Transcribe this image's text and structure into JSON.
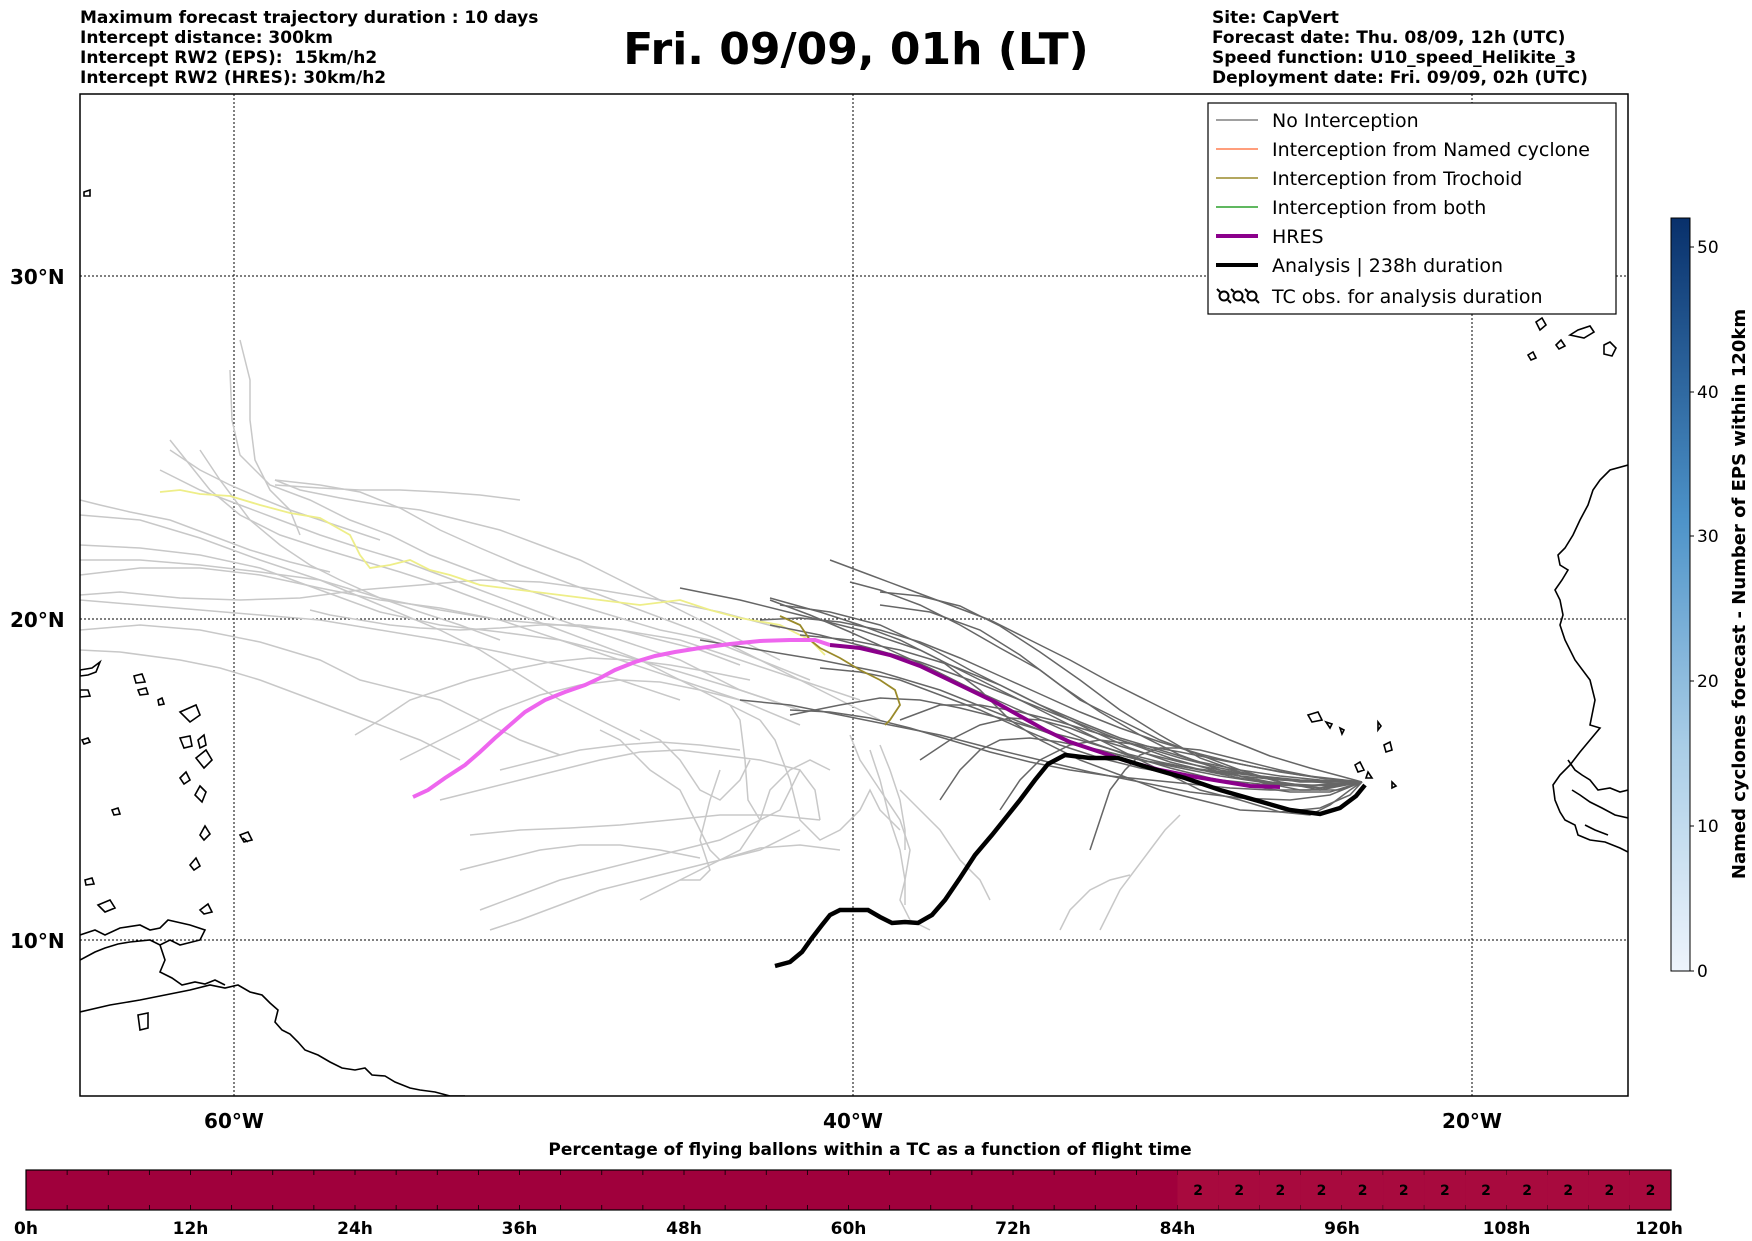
{
  "header": {
    "left": [
      "Maximum forecast trajectory duration : 10 days",
      "Intercept distance: 300km",
      "Intercept RW2 (EPS):  15km/h2",
      "Intercept RW2 (HRES): 30km/h2"
    ],
    "title": "Fri. 09/09, 01h (LT)",
    "right": [
      "Site: CapVert",
      "Forecast date: Thu. 08/09, 12h (UTC)",
      "Speed function: U10_speed_Helikite_3",
      "Deployment date: Fri. 09/09, 02h (UTC)"
    ]
  },
  "map": {
    "lat_labels": [
      "30°N",
      "20°N",
      "10°N"
    ],
    "lon_labels": [
      "60°W",
      "40°W",
      "20°W"
    ]
  },
  "legend": {
    "items": [
      {
        "label": "No Interception",
        "color": "#808080"
      },
      {
        "label": "Interception from Named cyclone",
        "color": "#ff7f50"
      },
      {
        "label": "Interception from Trochoid",
        "color": "#9a8a2a"
      },
      {
        "label": "Interception from both",
        "color": "#2ca02c"
      },
      {
        "label": "HRES",
        "color": "#8b008b"
      },
      {
        "label": "Analysis | 238h duration",
        "color": "#000000"
      },
      {
        "label": "TC obs. for analysis duration",
        "icon": "tc-symbol-icon"
      }
    ]
  },
  "colorbar": {
    "label": "Named cyclones forecast - Number of EPS within 120km",
    "ticks": [
      "0",
      "10",
      "20",
      "30",
      "40",
      "50"
    ]
  },
  "progress": {
    "title": "Percentage of flying ballons within a TC as a function of flight time",
    "tick_labels": [
      "0h",
      "12h",
      "24h",
      "36h",
      "48h",
      "60h",
      "72h",
      "84h",
      "96h",
      "108h",
      "120h"
    ],
    "cell_values": [
      "2",
      "2",
      "2",
      "2",
      "2",
      "2",
      "2",
      "2",
      "2",
      "2",
      "2",
      "2"
    ],
    "base_color": "#a0003c",
    "highlight_color": "#a80a3e"
  },
  "colors": {
    "eps_light": "#c8c8c8",
    "eps_dark": "#666666",
    "hres_light": "#ee66ee",
    "hres_dark": "#8b008b",
    "analysis": "#000000",
    "trochoid_light": "#eeee88",
    "trochoid_dark": "#9a8a2a"
  }
}
